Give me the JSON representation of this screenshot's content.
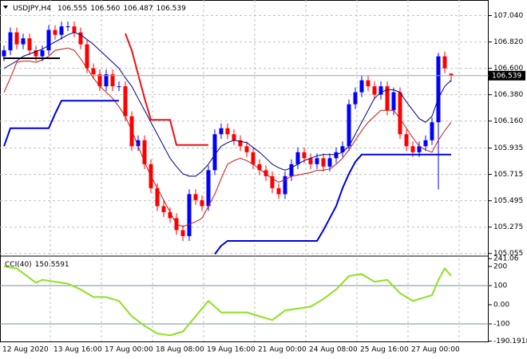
{
  "chart_data": [
    {
      "type": "candlestick",
      "symbol": "USDJPY,H4",
      "quote": [
        106.555,
        {
          "value": 106.56,
          "label": "106.560"
        },
        106.487,
        106.539
      ],
      "categories": [
        "12 Aug 2020",
        null,
        null,
        null,
        null,
        null,
        null,
        null,
        "13 Aug 16:00",
        null,
        null,
        null,
        null,
        null,
        null,
        null,
        "17 Aug 00:00",
        null,
        null,
        null,
        null,
        null,
        null,
        null,
        "18 Aug 08:00",
        null,
        null,
        null,
        null,
        null,
        null,
        null,
        "19 Aug 16:00",
        null,
        null,
        null,
        null,
        null,
        null,
        null,
        "21 Aug 00:00",
        null,
        null,
        null,
        null,
        null,
        null,
        null,
        "24 Aug 08:00",
        null,
        null,
        null,
        null,
        null,
        null,
        null,
        "25 Aug 16:00",
        null,
        null,
        null,
        null,
        null,
        null,
        null,
        "27 Aug 00:00",
        null,
        null,
        null,
        null,
        null,
        null
      ],
      "open": [
        106.7,
        106.75,
        106.9,
        106.8,
        106.85,
        106.75,
        106.7,
        106.75,
        106.92,
        106.88,
        106.95,
        106.95,
        106.9,
        106.8,
        106.6,
        106.55,
        106.45,
        106.55,
        106.45,
        106.45,
        106.2,
        105.95,
        106.0,
        105.8,
        105.6,
        105.45,
        105.4,
        105.35,
        105.25,
        105.2,
        105.55,
        105.5,
        105.45,
        105.75,
        106.05,
        106.1,
        106.05,
        106.0,
        105.95,
        105.9,
        105.8,
        105.75,
        105.7,
        105.6,
        105.55,
        105.7,
        105.8,
        105.9,
        105.85,
        105.8,
        105.85,
        105.78,
        105.85,
        105.9,
        105.95,
        106.3,
        106.4,
        106.5,
        106.45,
        106.38,
        106.45,
        106.25,
        106.4,
        106.05,
        105.95,
        105.9,
        105.95,
        106.0,
        106.15,
        106.7,
        106.555
      ],
      "high": [
        106.79,
        106.94,
        106.94,
        106.89,
        106.89,
        106.79,
        106.79,
        106.96,
        106.96,
        106.99,
        106.99,
        106.99,
        106.94,
        106.84,
        106.64,
        106.59,
        106.59,
        106.59,
        106.49,
        106.49,
        106.24,
        106.04,
        106.04,
        105.84,
        105.64,
        105.49,
        105.44,
        105.39,
        105.29,
        105.59,
        105.59,
        105.54,
        105.79,
        106.09,
        106.14,
        106.14,
        106.09,
        106.04,
        105.99,
        105.94,
        105.84,
        105.79,
        105.74,
        105.64,
        105.74,
        105.84,
        105.94,
        105.94,
        105.89,
        105.89,
        105.89,
        105.89,
        105.94,
        105.99,
        106.34,
        106.44,
        106.54,
        106.54,
        106.49,
        106.49,
        106.49,
        106.44,
        106.44,
        106.09,
        105.99,
        105.99,
        106.04,
        106.19,
        106.73,
        106.74,
        106.56
      ],
      "low": [
        106.66,
        106.71,
        106.76,
        106.76,
        106.71,
        106.66,
        106.66,
        106.71,
        106.84,
        106.84,
        106.91,
        106.86,
        106.76,
        106.56,
        106.51,
        106.41,
        106.41,
        106.41,
        106.41,
        106.16,
        105.91,
        105.91,
        105.76,
        105.56,
        105.41,
        105.36,
        105.31,
        105.21,
        105.16,
        105.16,
        105.46,
        105.41,
        105.41,
        105.71,
        106.01,
        106.01,
        105.96,
        105.91,
        105.86,
        105.76,
        105.71,
        105.66,
        105.56,
        105.51,
        105.51,
        105.66,
        105.76,
        105.81,
        105.76,
        105.76,
        105.74,
        105.74,
        105.81,
        105.86,
        105.91,
        106.26,
        106.36,
        106.41,
        106.34,
        106.34,
        106.21,
        106.21,
        106.01,
        105.91,
        105.86,
        105.86,
        105.91,
        105.96,
        105.59,
        106.56,
        106.487
      ],
      "close": [
        106.75,
        106.9,
        106.8,
        106.85,
        106.75,
        106.7,
        106.75,
        106.92,
        106.88,
        106.95,
        106.95,
        106.9,
        106.8,
        106.6,
        106.55,
        106.45,
        106.55,
        106.45,
        106.45,
        106.2,
        105.95,
        106.0,
        105.8,
        105.6,
        105.45,
        105.4,
        105.35,
        105.25,
        105.2,
        105.55,
        105.5,
        105.45,
        105.75,
        106.05,
        106.1,
        106.05,
        106.0,
        105.95,
        105.9,
        105.8,
        105.75,
        105.7,
        105.6,
        105.55,
        105.7,
        105.8,
        105.9,
        105.85,
        105.8,
        105.85,
        105.78,
        105.85,
        105.9,
        105.95,
        106.3,
        106.4,
        106.5,
        106.45,
        106.38,
        106.45,
        106.25,
        106.4,
        106.05,
        105.95,
        105.9,
        105.95,
        106.0,
        106.15,
        106.7,
        106.6,
        106.539
      ],
      "up_color": "#0000ff",
      "down_color": "#ff0000",
      "overlays": [
        {
          "color": "#000080",
          "width": 1,
          "values": [
            106.6,
            106.63,
            106.66,
            106.7,
            106.72,
            106.74,
            106.76,
            106.79,
            106.82,
            106.85,
            106.88,
            106.9,
            106.88,
            106.84,
            106.8,
            106.75,
            106.7,
            106.65,
            106.6,
            106.52,
            106.45,
            106.35,
            106.25,
            106.15,
            106.05,
            105.95,
            105.85,
            105.78,
            105.72,
            105.7,
            105.7,
            105.74,
            105.8,
            105.88,
            105.95,
            105.98,
            106.0,
            105.99,
            105.98,
            105.94,
            105.9,
            105.85,
            105.8,
            105.77,
            105.75,
            105.77,
            105.8,
            105.83,
            105.85,
            105.87,
            105.88,
            105.88,
            105.88,
            105.9,
            105.95,
            106.05,
            106.15,
            106.25,
            106.35,
            106.4,
            106.42,
            106.42,
            106.4,
            106.32,
            106.25,
            106.18,
            106.15,
            106.2,
            106.35,
            106.45,
            106.5
          ]
        },
        {
          "color": "#d01010",
          "width": 1,
          "values": [
            106.4,
            106.52,
            106.65,
            106.66,
            106.66,
            106.65,
            106.67,
            106.7,
            106.75,
            106.76,
            106.77,
            106.75,
            106.68,
            106.6,
            106.52,
            106.45,
            106.4,
            106.35,
            106.28,
            106.2,
            106.08,
            105.95,
            105.82,
            105.7,
            105.6,
            105.5,
            105.4,
            105.3,
            105.28,
            105.3,
            105.32,
            105.35,
            105.45,
            105.55,
            105.68,
            105.8,
            105.83,
            105.85,
            105.83,
            105.8,
            105.76,
            105.72,
            105.68,
            105.65,
            105.67,
            105.7,
            105.71,
            105.72,
            105.73,
            105.75,
            105.75,
            105.76,
            105.8,
            105.85,
            105.92,
            106.0,
            106.08,
            106.15,
            106.2,
            106.25,
            106.25,
            106.25,
            106.18,
            106.1,
            106.02,
            105.95,
            105.92,
            105.9,
            106.0,
            106.08,
            106.15
          ]
        },
        {
          "color": "#ee1111",
          "width": 2,
          "values": [
            null,
            null,
            null,
            null,
            null,
            null,
            null,
            null,
            null,
            null,
            null,
            null,
            null,
            null,
            null,
            null,
            null,
            null,
            null,
            106.89,
            106.75,
            106.55,
            106.35,
            106.17,
            106.17,
            106.17,
            106.17,
            105.96,
            105.96,
            105.96,
            105.96,
            105.96,
            105.96,
            null,
            null,
            null,
            null,
            null,
            null,
            null,
            null,
            null,
            null,
            null,
            null,
            null,
            null,
            null,
            null,
            null,
            null,
            null,
            null,
            null,
            null,
            null,
            null,
            null,
            null,
            null,
            null,
            null,
            null,
            null,
            null,
            null,
            null,
            null,
            null,
            null,
            null
          ]
        },
        {
          "color": "#0000dd",
          "width": 2,
          "values": [
            105.95,
            106.1,
            106.1,
            106.1,
            106.1,
            106.1,
            106.1,
            106.1,
            106.22,
            106.33,
            106.33,
            106.33,
            106.33,
            106.33,
            106.33,
            106.33,
            106.33,
            106.33,
            106.33,
            null,
            null,
            null,
            null,
            null,
            null,
            null,
            null,
            null,
            null,
            null,
            null,
            null,
            null,
            105.05,
            105.12,
            105.16,
            105.16,
            105.16,
            105.16,
            105.16,
            105.16,
            105.16,
            105.16,
            105.16,
            105.16,
            105.16,
            105.16,
            105.16,
            105.16,
            105.16,
            105.25,
            105.35,
            105.45,
            105.6,
            105.72,
            105.82,
            105.88,
            105.88,
            105.88,
            105.88,
            105.88,
            105.88,
            105.88,
            105.88,
            105.88,
            105.88,
            105.88,
            105.88,
            105.88,
            105.88,
            105.88
          ]
        }
      ],
      "ylim": [
        105.04,
        107.17
      ],
      "yticks": [
        {
          "value": 107.04,
          "label": "107.040"
        },
        {
          "value": 106.82,
          "label": "106.820"
        },
        {
          "value": 106.6,
          "label": "106.600"
        },
        {
          "value": 106.38,
          "label": "106.380"
        },
        {
          "value": 106.16,
          "label": "106.160"
        },
        105.935,
        105.715,
        105.495,
        105.275,
        105.055
      ],
      "grid": true
    },
    {
      "type": "line",
      "title": "CCI(40)",
      "current": 150.5591,
      "color": "#8ee020",
      "values": [
        200,
        195,
        190,
        165,
        140,
        115,
        130,
        125,
        120,
        115,
        110,
        95,
        80,
        60,
        40,
        40,
        40,
        30,
        20,
        -20,
        -60,
        -85,
        -110,
        -130,
        -150,
        -155,
        -160,
        -150,
        -140,
        -100,
        -60,
        -20,
        20,
        -10,
        -40,
        -40,
        -40,
        -40,
        -40,
        -50,
        -60,
        -70,
        -80,
        -55,
        -30,
        -25,
        -20,
        -15,
        -10,
        10,
        30,
        55,
        80,
        115,
        150,
        155,
        160,
        140,
        120,
        125,
        130,
        95,
        60,
        40,
        20,
        30,
        40,
        50,
        130,
        190,
        150.5591
      ],
      "ylim": [
        -191.7,
        250
      ],
      "yticks": [
        241.06,
        200,
        100,
        {
          "value": 0,
          "label": "0.00"
        },
        -100,
        -190.1918
      ],
      "levels": [
        100,
        -100
      ]
    }
  ]
}
